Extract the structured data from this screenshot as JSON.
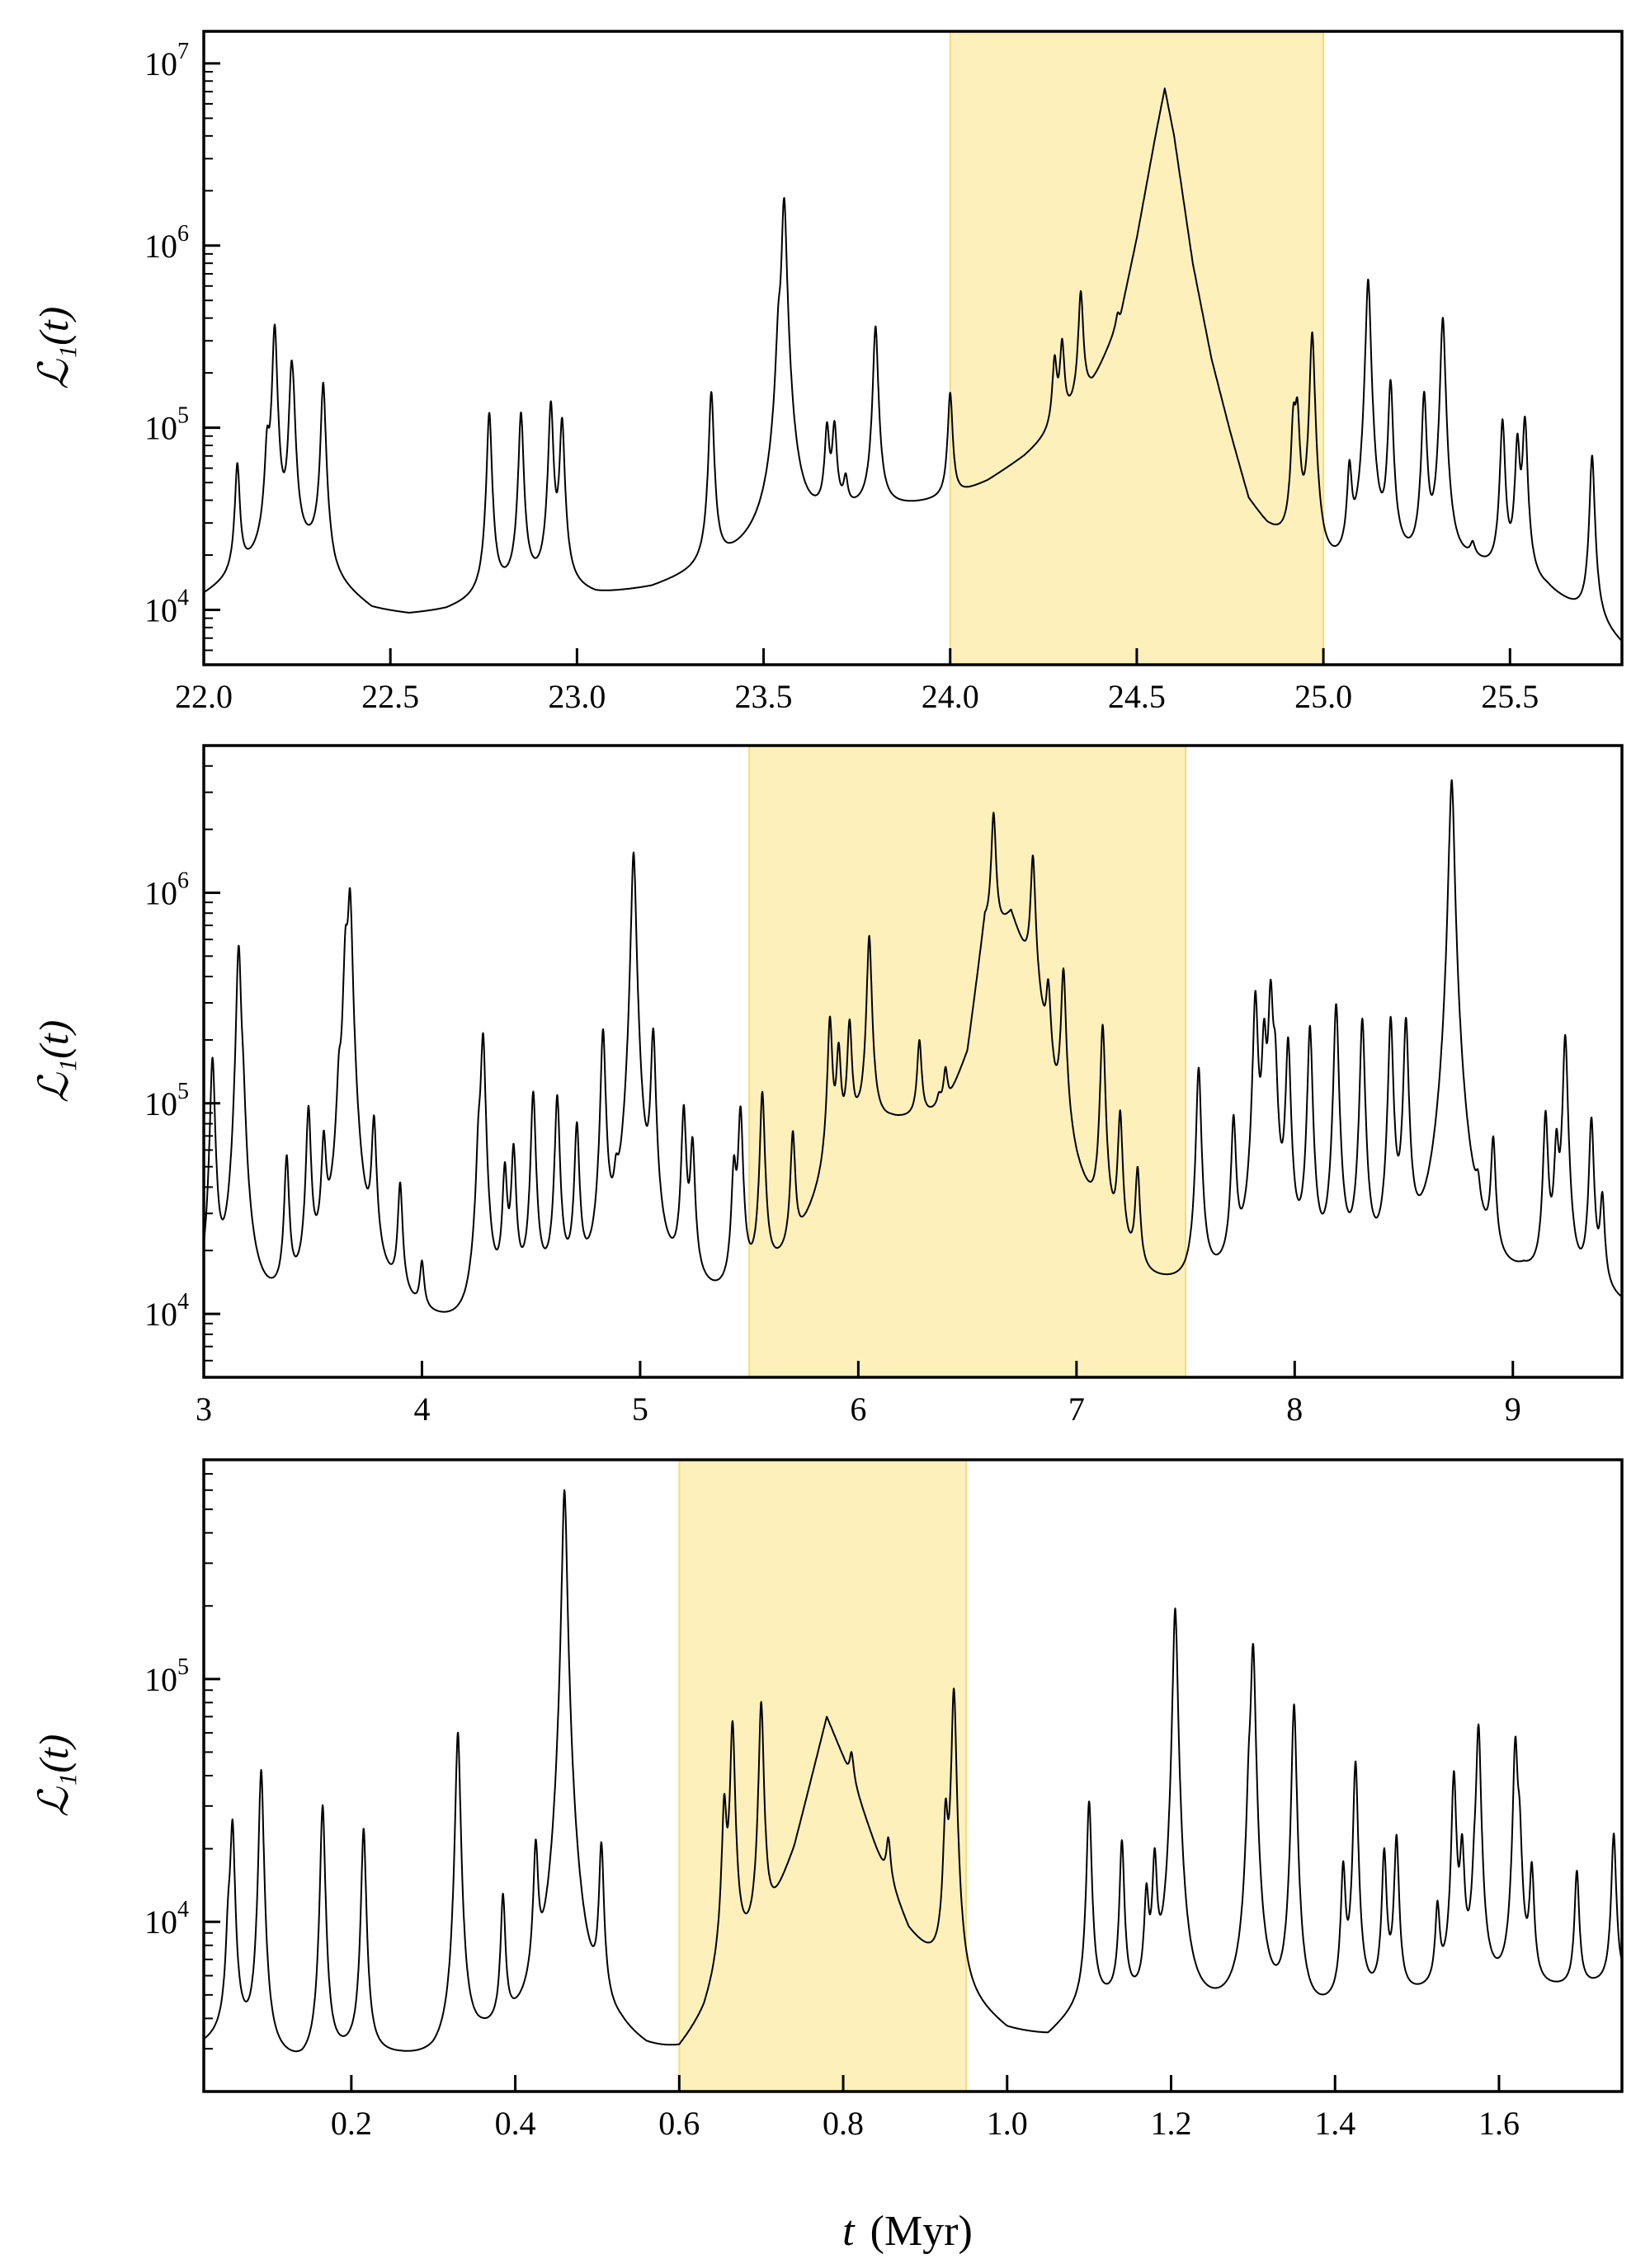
{
  "figure": {
    "xlabel_var": "t",
    "xlabel_unit": "(Myr)",
    "ylabel": "ℒ₁(t)"
  },
  "colors": {
    "line": "#000000",
    "highlight": "#fdf0bb",
    "highlight_edge": "#f3dd7a",
    "axes": "#000000"
  },
  "chart_data": [
    {
      "type": "line",
      "title": "",
      "ylabel": "ℒ₁(t)",
      "xlabel": "",
      "xlim": [
        22.0,
        25.8
      ],
      "ylim": [
        5000,
        15000000
      ],
      "yscale": "log",
      "xticks": [
        22.0,
        22.5,
        23.0,
        23.5,
        24.0,
        24.5,
        25.0,
        25.5
      ],
      "xtick_labels": [
        "22.0",
        "22.5",
        "23.0",
        "23.5",
        "24.0",
        "24.5",
        "25.0",
        "25.5"
      ],
      "yticks": [
        10000,
        100000,
        1000000,
        10000000
      ],
      "ytick_exponents": [
        "4",
        "5",
        "6",
        "7"
      ],
      "highlight": [
        24.0,
        25.0
      ],
      "baseline": [
        [
          22.0,
          11500
        ],
        [
          22.05,
          13000
        ],
        [
          22.1,
          15000
        ],
        [
          22.2,
          18000
        ],
        [
          22.3,
          20000
        ],
        [
          22.35,
          13000
        ],
        [
          22.45,
          9500
        ],
        [
          22.55,
          9000
        ],
        [
          22.65,
          9500
        ],
        [
          22.75,
          11000
        ],
        [
          22.85,
          13000
        ],
        [
          22.95,
          12500
        ],
        [
          23.05,
          11500
        ],
        [
          23.2,
          12500
        ],
        [
          23.3,
          14500
        ],
        [
          23.4,
          17000
        ],
        [
          23.5,
          21000
        ],
        [
          23.6,
          26000
        ],
        [
          23.7,
          32000
        ],
        [
          23.8,
          35000
        ],
        [
          23.9,
          37000
        ],
        [
          24.0,
          40000
        ],
        [
          24.1,
          50000
        ],
        [
          24.2,
          68000
        ],
        [
          24.3,
          100000
        ],
        [
          24.38,
          170000
        ],
        [
          24.45,
          360000
        ],
        [
          24.5,
          1100000
        ],
        [
          24.55,
          4000000
        ],
        [
          24.575,
          7300000
        ],
        [
          24.6,
          4000000
        ],
        [
          24.65,
          800000
        ],
        [
          24.7,
          240000
        ],
        [
          24.75,
          95000
        ],
        [
          24.8,
          40000
        ],
        [
          24.85,
          28000
        ],
        [
          24.9,
          22000
        ],
        [
          24.95,
          18000
        ],
        [
          25.0,
          14000
        ],
        [
          25.1,
          14000
        ],
        [
          25.2,
          16000
        ],
        [
          25.3,
          14000
        ],
        [
          25.4,
          17000
        ],
        [
          25.5,
          13000
        ],
        [
          25.6,
          12000
        ],
        [
          25.7,
          9000
        ],
        [
          25.8,
          6000
        ]
      ],
      "peaks": [
        [
          22.09,
          62000
        ],
        [
          22.17,
          70000
        ],
        [
          22.19,
          360000
        ],
        [
          22.235,
          190000
        ],
        [
          22.24,
          78000
        ],
        [
          22.32,
          175000
        ],
        [
          22.765,
          120000
        ],
        [
          22.85,
          120000
        ],
        [
          22.93,
          135000
        ],
        [
          22.96,
          108000
        ],
        [
          23.36,
          155000
        ],
        [
          23.54,
          240000
        ],
        [
          23.555,
          1800000
        ],
        [
          23.67,
          95000
        ],
        [
          23.69,
          98000
        ],
        [
          23.72,
          48000
        ],
        [
          23.8,
          360000
        ],
        [
          24.0,
          155000
        ],
        [
          24.28,
          230000
        ],
        [
          24.3,
          290000
        ],
        [
          24.35,
          560000
        ],
        [
          24.45,
          430000
        ],
        [
          24.92,
          105000
        ],
        [
          24.93,
          115000
        ],
        [
          24.97,
          330000
        ],
        [
          25.07,
          55000
        ],
        [
          25.12,
          650000
        ],
        [
          25.18,
          175000
        ],
        [
          25.27,
          150000
        ],
        [
          25.32,
          400000
        ],
        [
          25.4,
          20000
        ],
        [
          25.48,
          108000
        ],
        [
          25.52,
          82000
        ],
        [
          25.54,
          108000
        ],
        [
          25.72,
          70000
        ]
      ]
    },
    {
      "type": "line",
      "title": "",
      "ylabel": "ℒ₁(t)",
      "xlabel": "",
      "xlim": [
        3.0,
        9.5
      ],
      "ylim": [
        5000,
        5000000
      ],
      "yscale": "log",
      "xticks": [
        3,
        4,
        5,
        6,
        7,
        8,
        9
      ],
      "xtick_labels": [
        "3",
        "4",
        "5",
        "6",
        "7",
        "8",
        "9"
      ],
      "yticks": [
        10000,
        100000,
        1000000
      ],
      "ytick_exponents": [
        "4",
        "5",
        "6"
      ],
      "highlight": [
        5.5,
        7.5
      ],
      "baseline": [
        [
          3.0,
          9000
        ],
        [
          3.2,
          8500
        ],
        [
          3.4,
          9000
        ],
        [
          3.6,
          11000
        ],
        [
          3.8,
          10000
        ],
        [
          4.0,
          8000
        ],
        [
          4.2,
          7000
        ],
        [
          4.4,
          10000
        ],
        [
          4.6,
          11000
        ],
        [
          4.8,
          10000
        ],
        [
          5.0,
          10500
        ],
        [
          5.2,
          10000
        ],
        [
          5.4,
          9500
        ],
        [
          5.55,
          12000
        ],
        [
          5.7,
          17000
        ],
        [
          5.85,
          38000
        ],
        [
          6.0,
          72000
        ],
        [
          6.15,
          80000
        ],
        [
          6.3,
          82000
        ],
        [
          6.4,
          90000
        ],
        [
          6.5,
          160000
        ],
        [
          6.58,
          700000
        ],
        [
          6.62,
          600000
        ],
        [
          6.7,
          800000
        ],
        [
          6.78,
          450000
        ],
        [
          6.85,
          200000
        ],
        [
          6.9,
          90000
        ],
        [
          7.0,
          40000
        ],
        [
          7.1,
          22000
        ],
        [
          7.2,
          15000
        ],
        [
          7.3,
          12000
        ],
        [
          7.5,
          11500
        ],
        [
          7.7,
          12000
        ],
        [
          7.9,
          11000
        ],
        [
          8.1,
          10500
        ],
        [
          8.3,
          10500
        ],
        [
          8.5,
          10000
        ],
        [
          8.7,
          10000
        ],
        [
          8.9,
          9500
        ],
        [
          9.05,
          12000
        ],
        [
          9.2,
          10500
        ],
        [
          9.35,
          11000
        ],
        [
          9.5,
          10000
        ]
      ],
      "peaks": [
        [
          3.04,
          160000
        ],
        [
          3.16,
          550000
        ],
        [
          3.18,
          60000
        ],
        [
          3.38,
          52000
        ],
        [
          3.48,
          90000
        ],
        [
          3.55,
          58000
        ],
        [
          3.62,
          85000
        ],
        [
          3.65,
          480000
        ],
        [
          3.67,
          950000
        ],
        [
          3.78,
          75000
        ],
        [
          3.9,
          38000
        ],
        [
          4.0,
          15000
        ],
        [
          4.26,
          48000
        ],
        [
          4.28,
          205000
        ],
        [
          4.38,
          45000
        ],
        [
          4.42,
          58000
        ],
        [
          4.51,
          110000
        ],
        [
          4.62,
          105000
        ],
        [
          4.71,
          75000
        ],
        [
          4.83,
          215000
        ],
        [
          4.89,
          24000
        ],
        [
          4.97,
          1550000
        ],
        [
          5.06,
          205000
        ],
        [
          5.2,
          90000
        ],
        [
          5.24,
          60000
        ],
        [
          5.43,
          45000
        ],
        [
          5.46,
          90000
        ],
        [
          5.56,
          110000
        ],
        [
          5.7,
          70000
        ],
        [
          5.87,
          245000
        ],
        [
          5.91,
          170000
        ],
        [
          5.96,
          235000
        ],
        [
          6.05,
          620000
        ],
        [
          6.28,
          195000
        ],
        [
          6.37,
          100000
        ],
        [
          6.4,
          140000
        ],
        [
          6.62,
          2400000
        ],
        [
          6.8,
          1500000
        ],
        [
          6.87,
          350000
        ],
        [
          6.94,
          420000
        ],
        [
          7.12,
          230000
        ],
        [
          7.2,
          85000
        ],
        [
          7.28,
          45000
        ],
        [
          7.56,
          145000
        ],
        [
          7.72,
          80000
        ],
        [
          7.82,
          320000
        ],
        [
          7.86,
          190000
        ],
        [
          7.89,
          330000
        ],
        [
          7.91,
          130000
        ],
        [
          7.97,
          190000
        ],
        [
          8.07,
          225000
        ],
        [
          8.19,
          290000
        ],
        [
          8.31,
          245000
        ],
        [
          8.44,
          245000
        ],
        [
          8.51,
          240000
        ],
        [
          8.71,
          250000
        ],
        [
          8.72,
          3300000
        ],
        [
          8.84,
          20000
        ],
        [
          8.91,
          58000
        ],
        [
          9.15,
          85000
        ],
        [
          9.2,
          58000
        ],
        [
          9.24,
          205000
        ],
        [
          9.36,
          82000
        ],
        [
          9.41,
          33000
        ]
      ]
    },
    {
      "type": "line",
      "title": "",
      "ylabel": "ℒ₁(t)",
      "xlabel": "t (Myr)",
      "xlim": [
        0.02,
        1.75
      ],
      "ylim": [
        2000,
        800000
      ],
      "yscale": "log",
      "xticks": [
        0.2,
        0.4,
        0.6,
        0.8,
        1.0,
        1.2,
        1.4,
        1.6
      ],
      "xtick_labels": [
        "0.2",
        "0.4",
        "0.6",
        "0.8",
        "1.0",
        "1.2",
        "1.4",
        "1.6"
      ],
      "yticks": [
        10000,
        100000
      ],
      "ytick_exponents": [
        "4",
        "5"
      ],
      "highlight": [
        0.6,
        0.95
      ],
      "baseline": [
        [
          0.02,
          3000
        ],
        [
          0.06,
          3300
        ],
        [
          0.1,
          2600
        ],
        [
          0.14,
          2400
        ],
        [
          0.2,
          2700
        ],
        [
          0.26,
          2600
        ],
        [
          0.3,
          2500
        ],
        [
          0.36,
          2900
        ],
        [
          0.42,
          3000
        ],
        [
          0.48,
          3000
        ],
        [
          0.53,
          2900
        ],
        [
          0.56,
          2600
        ],
        [
          0.6,
          2600
        ],
        [
          0.63,
          3600
        ],
        [
          0.66,
          6500
        ],
        [
          0.7,
          8000
        ],
        [
          0.74,
          20000
        ],
        [
          0.78,
          70000
        ],
        [
          0.8,
          48000
        ],
        [
          0.84,
          20000
        ],
        [
          0.88,
          9000
        ],
        [
          0.92,
          6000
        ],
        [
          0.95,
          4500
        ],
        [
          1.0,
          3400
        ],
        [
          1.05,
          3200
        ],
        [
          1.1,
          4500
        ],
        [
          1.2,
          4000
        ],
        [
          1.3,
          4000
        ],
        [
          1.36,
          3700
        ],
        [
          1.45,
          4500
        ],
        [
          1.55,
          5000
        ],
        [
          1.65,
          5000
        ],
        [
          1.75,
          5500
        ]
      ],
      "peaks": [
        [
          0.05,
          8000
        ],
        [
          0.055,
          25000
        ],
        [
          0.09,
          42000
        ],
        [
          0.165,
          30000
        ],
        [
          0.215,
          24000
        ],
        [
          0.33,
          60000
        ],
        [
          0.385,
          12000
        ],
        [
          0.425,
          18000
        ],
        [
          0.46,
          600000
        ],
        [
          0.505,
          19000
        ],
        [
          0.655,
          29000
        ],
        [
          0.665,
          65000
        ],
        [
          0.7,
          80000
        ],
        [
          0.81,
          50000
        ],
        [
          0.855,
          22000
        ],
        [
          0.925,
          26000
        ],
        [
          0.935,
          90000
        ],
        [
          1.1,
          31000
        ],
        [
          1.14,
          21000
        ],
        [
          1.17,
          12000
        ],
        [
          1.18,
          17000
        ],
        [
          1.205,
          195000
        ],
        [
          1.295,
          24000
        ],
        [
          1.3,
          135000
        ],
        [
          1.35,
          78000
        ],
        [
          1.41,
          16000
        ],
        [
          1.425,
          45000
        ],
        [
          1.46,
          19000
        ],
        [
          1.475,
          22000
        ],
        [
          1.525,
          11000
        ],
        [
          1.545,
          40000
        ],
        [
          1.555,
          19000
        ],
        [
          1.57,
          10000
        ],
        [
          1.575,
          63000
        ],
        [
          1.62,
          54000
        ],
        [
          1.625,
          20000
        ],
        [
          1.64,
          16000
        ],
        [
          1.695,
          16000
        ],
        [
          1.74,
          23000
        ]
      ]
    }
  ]
}
